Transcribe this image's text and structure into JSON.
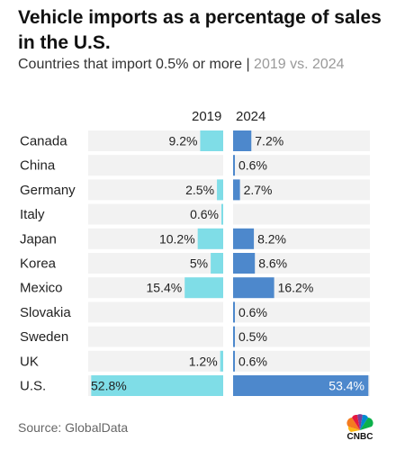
{
  "title": "Vehicle imports as a percentage of sales in the U.S.",
  "subtitle": {
    "main": "Countries that import 0.5% or more | ",
    "muted": "2019 vs. 2024"
  },
  "source": "Source: GlobalData",
  "logo_text": "CNBC",
  "colors": {
    "y2019": "#7fdde7",
    "y2024": "#4d88cc",
    "row_bg": "#f2f2f2"
  },
  "chart_data": {
    "type": "bar",
    "title": "Vehicle imports as a percentage of sales in the U.S.",
    "categories": [
      "Canada",
      "China",
      "Germany",
      "Italy",
      "Japan",
      "Korea",
      "Mexico",
      "Slovakia",
      "Sweden",
      "UK",
      "U.S."
    ],
    "series": [
      {
        "name": "2019",
        "values": [
          9.2,
          null,
          2.5,
          0.6,
          10.2,
          5,
          15.4,
          null,
          null,
          1.2,
          52.8
        ],
        "labels": [
          "9.2%",
          "",
          "2.5%",
          "0.6%",
          "10.2%",
          "5%",
          "15.4%",
          "",
          "",
          "1.2%",
          "52.8%"
        ]
      },
      {
        "name": "2024",
        "values": [
          7.2,
          0.6,
          2.7,
          null,
          8.2,
          8.6,
          16.2,
          0.6,
          0.5,
          0.6,
          53.4
        ],
        "labels": [
          "7.2%",
          "0.6%",
          "2.7%",
          "",
          "8.2%",
          "8.6%",
          "16.2%",
          "0.6%",
          "0.5%",
          "0.6%",
          "53.4%"
        ]
      }
    ],
    "unit": "%"
  }
}
